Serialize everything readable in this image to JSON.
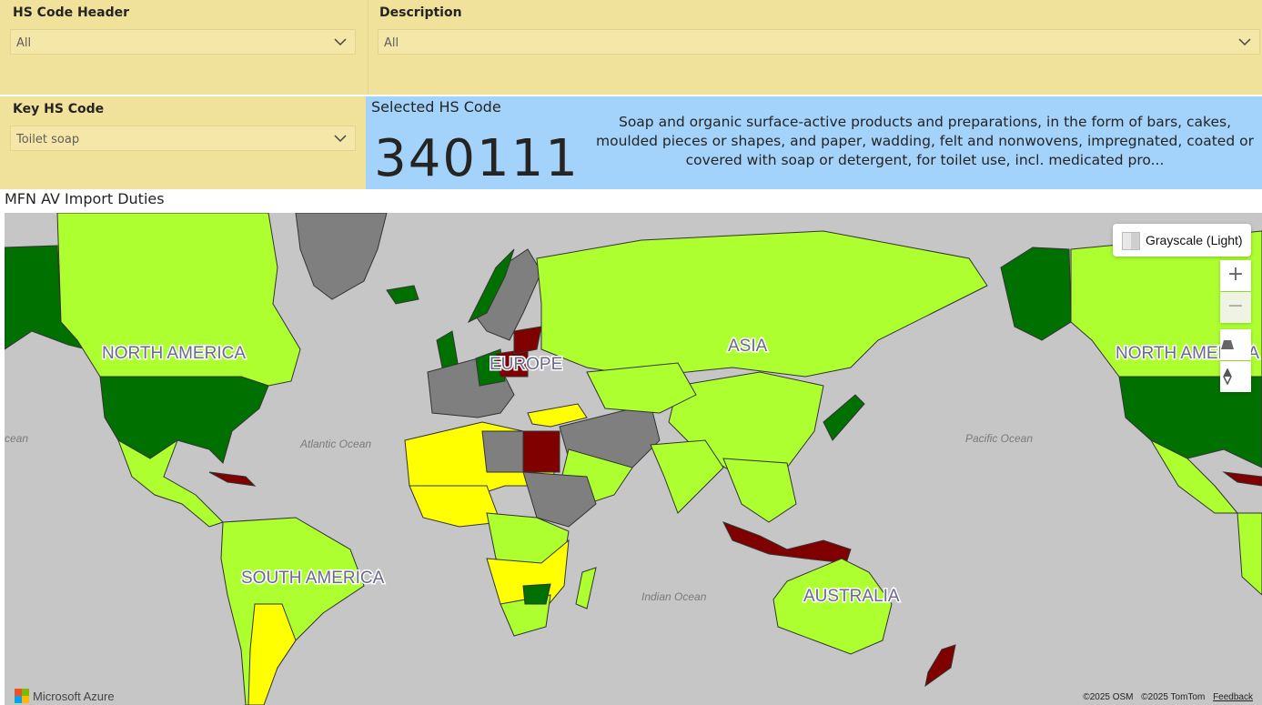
{
  "filters": {
    "hs_code_header": {
      "label": "HS Code Header",
      "value": "All"
    },
    "description": {
      "label": "Description",
      "value": "All"
    },
    "key_hs_code": {
      "label": "Key HS Code",
      "value": "Toilet soap"
    }
  },
  "selected_code": {
    "title": "Selected HS Code",
    "value": "340111",
    "description": "Soap and organic surface-active products and preparations, in the form of bars, cakes, moulded pieces or shapes, and paper, wadding, felt and nonwovens, impregnated, coated or covered with soap or detergent, for toilet use, incl. medicated pro..."
  },
  "map": {
    "title": "MFN AV Import Duties",
    "labels": {
      "north_america": "NORTH AMERICA",
      "north_america_repeat": "NORTH AMERICA",
      "south_america": "SOUTH AMERICA",
      "europe": "EUROPE",
      "asia": "ASIA",
      "australia": "AUSTRALIA",
      "atlantic": "Atlantic Ocean",
      "pacific": "Pacific Ocean",
      "indian": "Indian Ocean",
      "ocean_edge": "cean"
    },
    "style_button": "Grayscale (Light)",
    "zoom_in": "+",
    "zoom_out": "−",
    "brand": "Microsoft Azure",
    "attribution_osm": "©2025 OSM",
    "attribution_tomtom": "©2025 TomTom",
    "feedback": "Feedback",
    "colors": {
      "ocean": "#c6c6c6",
      "light_green": "#adff2f",
      "dark_green": "#007000",
      "yellow": "#ffff00",
      "dark_red": "#800000",
      "gray": "#7f7f7f"
    }
  }
}
